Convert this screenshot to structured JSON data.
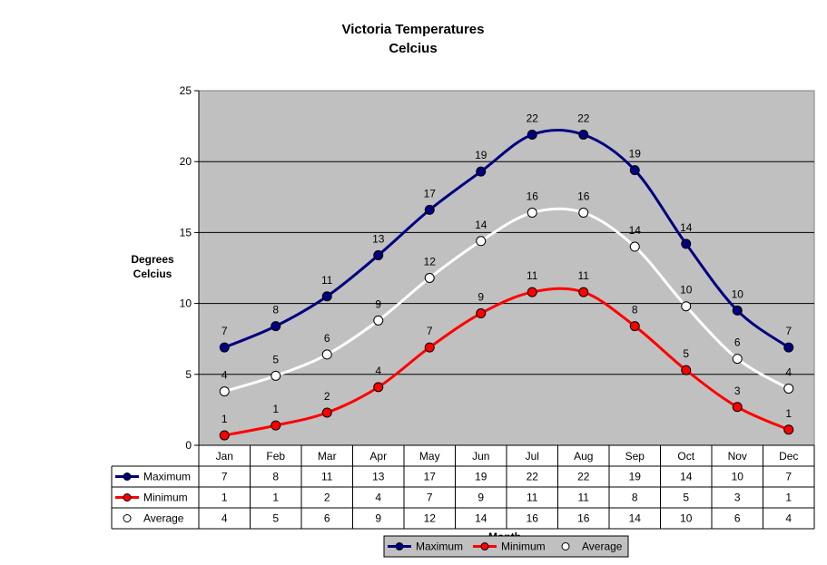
{
  "chart_data": {
    "type": "line",
    "title": "Victoria Temperatures",
    "subtitle": "Celcius",
    "ylabel_line1": "Degrees",
    "ylabel_line2": "Celcius",
    "xlabel": "Month",
    "ylim": [
      0,
      25
    ],
    "yticks": [
      0,
      5,
      10,
      15,
      20,
      25
    ],
    "grid": true,
    "legend_position": "bottom",
    "plot_background": "#c0c0c0",
    "categories": [
      "Jan",
      "Feb",
      "Mar",
      "Apr",
      "May",
      "Jun",
      "Jul",
      "Aug",
      "Sep",
      "Oct",
      "Nov",
      "Dec"
    ],
    "series": [
      {
        "name": "Maximum",
        "color": "#000080",
        "marker_fill": "#000080",
        "values": [
          6.9,
          8.4,
          10.5,
          13.4,
          16.6,
          19.3,
          21.9,
          21.9,
          19.4,
          14.2,
          9.5,
          6.9
        ],
        "labels": [
          "7",
          "8",
          "11",
          "13",
          "17",
          "19",
          "22",
          "22",
          "19",
          "14",
          "10",
          "7"
        ]
      },
      {
        "name": "Minimum",
        "color": "#ff0000",
        "marker_fill": "#ff0000",
        "values": [
          0.7,
          1.4,
          2.3,
          4.1,
          6.9,
          9.3,
          10.8,
          10.8,
          8.4,
          5.3,
          2.7,
          1.1
        ],
        "labels": [
          "1",
          "1",
          "2",
          "4",
          "7",
          "9",
          "11",
          "11",
          "8",
          "5",
          "3",
          "1"
        ]
      },
      {
        "name": "Average",
        "color": "#ffffff",
        "marker_fill": "#ffffff",
        "values": [
          3.8,
          4.9,
          6.4,
          8.8,
          11.8,
          14.4,
          16.4,
          16.4,
          14.0,
          9.8,
          6.1,
          4.0
        ],
        "labels": [
          "4",
          "5",
          "6",
          "9",
          "12",
          "14",
          "16",
          "16",
          "14",
          "10",
          "6",
          "4"
        ]
      }
    ]
  }
}
